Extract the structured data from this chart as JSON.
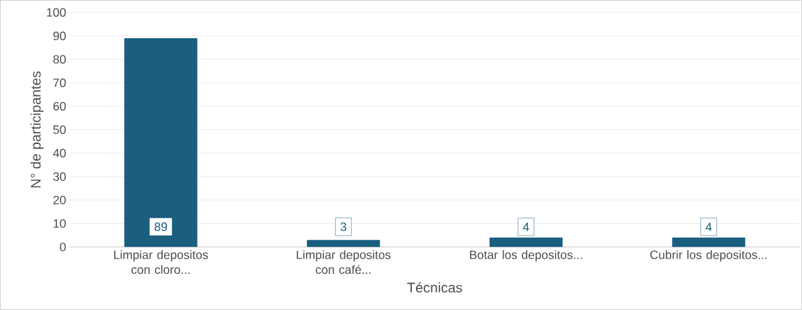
{
  "chart_data": {
    "type": "bar",
    "xlabel": "Técnicas",
    "ylabel": "N° de participantes",
    "categories": [
      "Limpiar depositos con cloro...",
      "Limpiar depositos con café...",
      "Botar los depositos...",
      "Cubrir los depositos..."
    ],
    "values": [
      89,
      3,
      4,
      4
    ],
    "color": "#1a5e80",
    "ylim": [
      0,
      100
    ],
    "yticks": [
      0,
      10,
      20,
      30,
      40,
      50,
      60,
      70,
      80,
      90,
      100
    ],
    "grid": "y",
    "data_labels": true
  }
}
